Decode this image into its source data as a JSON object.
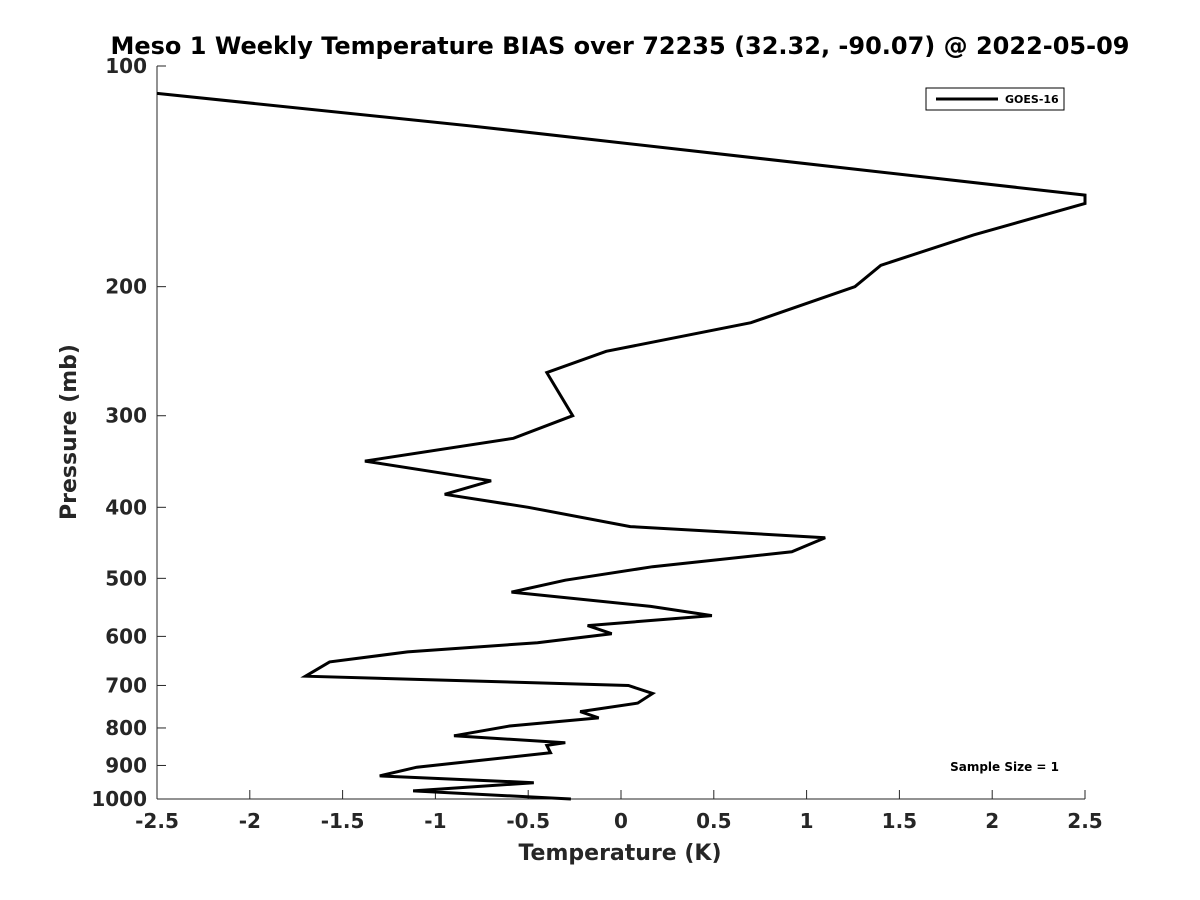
{
  "chart_data": {
    "type": "line",
    "title": "Meso 1 Weekly Temperature BIAS over 72235 (32.32, -90.07) @ 2022-05-09",
    "xlabel": "Temperature (K)",
    "ylabel": "Pressure (mb)",
    "xlim": [
      -2.5,
      2.5
    ],
    "ylim": [
      100,
      1000
    ],
    "y_scale": "log",
    "y_reversed": true,
    "x_ticks": [
      -2.5,
      -2,
      -1.5,
      -1,
      -0.5,
      0,
      0.5,
      1,
      1.5,
      2,
      2.5
    ],
    "x_tick_labels": [
      "-2.5",
      "-2",
      "-1.5",
      "-1",
      "-0.5",
      "0",
      "0.5",
      "1",
      "1.5",
      "2",
      "2.5"
    ],
    "y_ticks": [
      100,
      200,
      300,
      400,
      500,
      600,
      700,
      800,
      900,
      1000
    ],
    "y_tick_labels": [
      "100",
      "200",
      "300",
      "400",
      "500",
      "600",
      "700",
      "800",
      "900",
      "1000"
    ],
    "grid": false,
    "legend_position": "top-right",
    "series": [
      {
        "name": "GOES-16",
        "color": "#000000",
        "points": [
          [
            -2.5,
            109
          ],
          [
            -0.77,
            121
          ],
          [
            2.5,
            150
          ],
          [
            2.5,
            154
          ],
          [
            1.9,
            170
          ],
          [
            1.4,
            187
          ],
          [
            1.26,
            200
          ],
          [
            0.7,
            224
          ],
          [
            -0.08,
            245
          ],
          [
            -0.4,
            262
          ],
          [
            -0.26,
            300
          ],
          [
            -0.58,
            322
          ],
          [
            -1.38,
            346
          ],
          [
            -0.7,
            368
          ],
          [
            -0.95,
            384
          ],
          [
            -0.5,
            400
          ],
          [
            0.05,
            425
          ],
          [
            1.1,
            440
          ],
          [
            0.92,
            460
          ],
          [
            0.17,
            482
          ],
          [
            -0.3,
            503
          ],
          [
            -0.59,
            522
          ],
          [
            0.16,
            546
          ],
          [
            0.49,
            562
          ],
          [
            -0.18,
            580
          ],
          [
            -0.05,
            595
          ],
          [
            -0.45,
            612
          ],
          [
            -1.15,
            630
          ],
          [
            -1.57,
            650
          ],
          [
            -1.7,
            680
          ],
          [
            0.04,
            700
          ],
          [
            0.17,
            718
          ],
          [
            0.09,
            740
          ],
          [
            -0.22,
            760
          ],
          [
            -0.12,
            775
          ],
          [
            -0.6,
            795
          ],
          [
            -0.9,
            820
          ],
          [
            -0.3,
            838
          ],
          [
            -0.4,
            845
          ],
          [
            -0.38,
            865
          ],
          [
            -1.1,
            905
          ],
          [
            -1.3,
            930
          ],
          [
            -0.47,
            950
          ],
          [
            -1.12,
            975
          ],
          [
            -0.27,
            1000
          ]
        ]
      }
    ],
    "annotation": "Sample Size = 1"
  }
}
